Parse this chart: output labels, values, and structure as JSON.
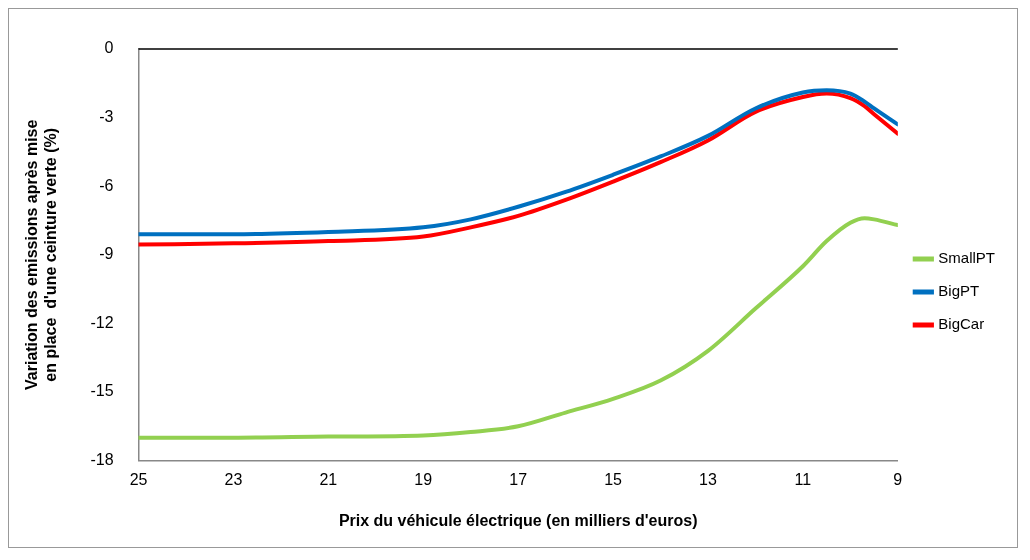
{
  "chart_data": {
    "type": "line",
    "xlabel": "Prix du véhicule électrique (en milliers d'euros)",
    "ylabel": "Variation des emissions après mise en place  d'une ceinture verte (%)",
    "x": [
      25,
      23,
      21,
      19,
      18,
      17,
      16,
      15,
      14,
      13,
      12,
      11,
      10.5,
      10,
      9.7,
      9.5,
      9
    ],
    "series": [
      {
        "name": "SmallPT",
        "color": "#92d050",
        "values": [
          -17.0,
          -17.0,
          -16.95,
          -16.9,
          -16.75,
          -16.5,
          -15.9,
          -15.3,
          -14.5,
          -13.2,
          -11.35,
          -9.5,
          -8.4,
          -7.6,
          -7.4,
          -7.45,
          -7.7
        ]
      },
      {
        "name": "BigPT",
        "color": "#0070c0",
        "values": [
          -8.1,
          -8.1,
          -8.0,
          -7.8,
          -7.45,
          -6.9,
          -6.25,
          -5.5,
          -4.7,
          -3.8,
          -2.6,
          -1.9,
          -1.8,
          -1.95,
          -2.3,
          -2.6,
          -3.3
        ]
      },
      {
        "name": "BigCar",
        "color": "#ff0000",
        "values": [
          -8.55,
          -8.5,
          -8.4,
          -8.2,
          -7.8,
          -7.3,
          -6.6,
          -5.8,
          -4.95,
          -4.0,
          -2.75,
          -2.1,
          -1.95,
          -2.15,
          -2.5,
          -2.85,
          -3.7
        ]
      }
    ],
    "xlim": [
      25,
      9
    ],
    "xticks": [
      25,
      23,
      21,
      19,
      17,
      15,
      13,
      11,
      9
    ],
    "ylim": [
      -18,
      0
    ],
    "yticks": [
      0,
      -3,
      -6,
      -9,
      -12,
      -15,
      -18
    ],
    "ref_lines": [
      {
        "axis": "y",
        "value": 0,
        "color": "#000000"
      }
    ],
    "grid": false,
    "legend": "right",
    "marker": "none",
    "line_style": "solid"
  }
}
